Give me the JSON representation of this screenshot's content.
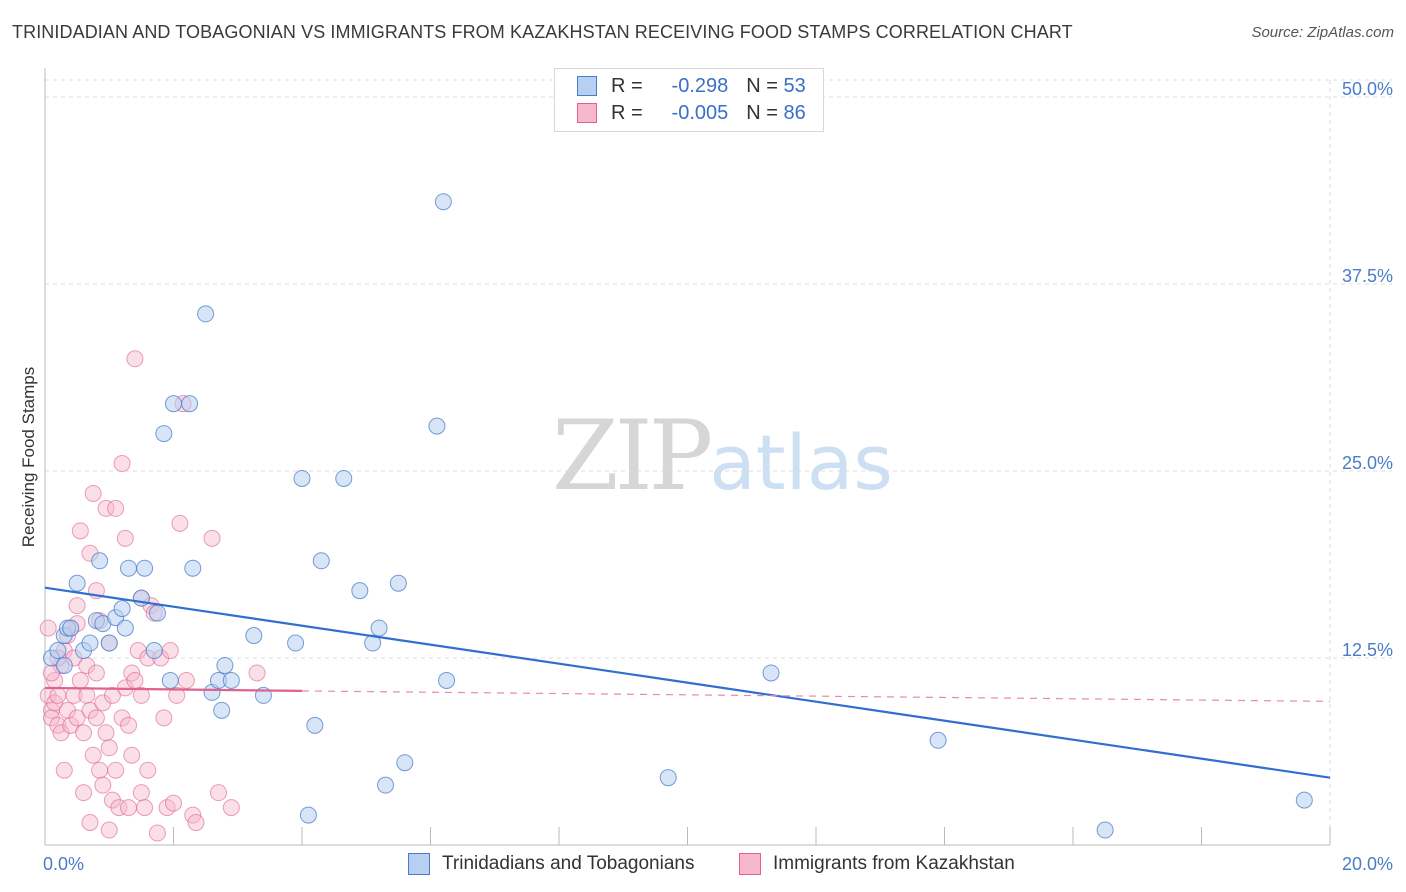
{
  "header": {
    "title": "TRINIDADIAN AND TOBAGONIAN VS IMMIGRANTS FROM KAZAKHSTAN RECEIVING FOOD STAMPS CORRELATION CHART",
    "source": "Source: ZipAtlas.com"
  },
  "watermark": {
    "zip": "ZIP",
    "atlas": "atlas"
  },
  "legend": {
    "rows": [
      {
        "r_label": "R =",
        "r_value": "-0.298",
        "n_label": "N =",
        "n_value": "53"
      },
      {
        "r_label": "R =",
        "r_value": "-0.005",
        "n_label": "N =",
        "n_value": "86"
      }
    ]
  },
  "colors": {
    "blue": "#4a7cc9",
    "blue_fill": "#b7cff0",
    "pink": "#e0608e",
    "pink_fill": "#f5b8cc"
  },
  "chart_data": {
    "type": "scatter",
    "title": "TRINIDADIAN AND TOBAGONIAN VS IMMIGRANTS FROM KAZAKHSTAN RECEIVING FOOD STAMPS CORRELATION CHART",
    "xlabel": "",
    "ylabel": "Receiving Food Stamps",
    "xlim": [
      0,
      20
    ],
    "ylim": [
      0,
      50
    ],
    "x_tick_labels": [
      "0.0%",
      "20.0%"
    ],
    "y_ticks": [
      12.5,
      25.0,
      37.5,
      50.0
    ],
    "y_tick_labels": [
      "12.5%",
      "25.0%",
      "37.5%",
      "50.0%"
    ],
    "grid": true,
    "legend_position": "top-center",
    "series": [
      {
        "name": "Trinidadians and Tobagonians",
        "r": -0.298,
        "n": 53,
        "trend": {
          "x": [
            0,
            20
          ],
          "y": [
            17.2,
            4.5
          ]
        },
        "points": [
          [
            0.1,
            12.5
          ],
          [
            0.2,
            13.0
          ],
          [
            0.3,
            12.0
          ],
          [
            0.3,
            14.0
          ],
          [
            0.35,
            14.5
          ],
          [
            0.4,
            14.5
          ],
          [
            0.5,
            17.5
          ],
          [
            0.6,
            13.0
          ],
          [
            0.7,
            13.5
          ],
          [
            0.8,
            15.0
          ],
          [
            0.85,
            19.0
          ],
          [
            0.9,
            14.8
          ],
          [
            1.0,
            13.5
          ],
          [
            1.1,
            15.2
          ],
          [
            1.2,
            15.8
          ],
          [
            1.25,
            14.5
          ],
          [
            1.3,
            18.5
          ],
          [
            1.5,
            16.5
          ],
          [
            1.55,
            18.5
          ],
          [
            1.7,
            13.0
          ],
          [
            1.75,
            15.5
          ],
          [
            1.85,
            27.5
          ],
          [
            1.95,
            11.0
          ],
          [
            2.0,
            29.5
          ],
          [
            2.25,
            29.5
          ],
          [
            2.3,
            18.5
          ],
          [
            2.5,
            35.5
          ],
          [
            2.6,
            10.2
          ],
          [
            2.7,
            11.0
          ],
          [
            2.75,
            9.0
          ],
          [
            2.8,
            12.0
          ],
          [
            2.9,
            11.0
          ],
          [
            3.25,
            14.0
          ],
          [
            3.4,
            10.0
          ],
          [
            3.9,
            13.5
          ],
          [
            4.0,
            24.5
          ],
          [
            4.1,
            2.0
          ],
          [
            4.2,
            8.0
          ],
          [
            4.3,
            19.0
          ],
          [
            4.65,
            24.5
          ],
          [
            4.9,
            17.0
          ],
          [
            5.1,
            13.5
          ],
          [
            5.2,
            14.5
          ],
          [
            5.3,
            4.0
          ],
          [
            5.5,
            17.5
          ],
          [
            5.6,
            5.5
          ],
          [
            6.1,
            28.0
          ],
          [
            6.25,
            11.0
          ],
          [
            6.2,
            43.0
          ],
          [
            9.7,
            4.5
          ],
          [
            11.3,
            11.5
          ],
          [
            13.9,
            7.0
          ],
          [
            16.5,
            1.0
          ],
          [
            19.6,
            3.0
          ]
        ]
      },
      {
        "name": "Immigrants from Kazakhstan",
        "r": -0.005,
        "n": 86,
        "trend": {
          "x": [
            0,
            4.0
          ],
          "y": [
            10.5,
            10.3
          ]
        },
        "trend_extension": {
          "x": [
            4.0,
            20
          ],
          "y": [
            10.3,
            9.6
          ]
        },
        "points": [
          [
            0.05,
            14.5
          ],
          [
            0.05,
            10.0
          ],
          [
            0.1,
            9.0
          ],
          [
            0.1,
            8.5
          ],
          [
            0.15,
            11.0
          ],
          [
            0.15,
            9.5
          ],
          [
            0.2,
            10.0
          ],
          [
            0.2,
            8.0
          ],
          [
            0.25,
            12.0
          ],
          [
            0.25,
            7.5
          ],
          [
            0.3,
            13.0
          ],
          [
            0.3,
            5.0
          ],
          [
            0.35,
            14.0
          ],
          [
            0.35,
            9.0
          ],
          [
            0.4,
            14.5
          ],
          [
            0.4,
            8.0
          ],
          [
            0.45,
            12.5
          ],
          [
            0.45,
            10.0
          ],
          [
            0.5,
            14.8
          ],
          [
            0.5,
            16.0
          ],
          [
            0.5,
            8.5
          ],
          [
            0.55,
            21.0
          ],
          [
            0.55,
            11.0
          ],
          [
            0.6,
            7.5
          ],
          [
            0.6,
            3.5
          ],
          [
            0.65,
            10.0
          ],
          [
            0.65,
            12.0
          ],
          [
            0.7,
            19.5
          ],
          [
            0.7,
            9.0
          ],
          [
            0.7,
            1.5
          ],
          [
            0.75,
            23.5
          ],
          [
            0.75,
            6.0
          ],
          [
            0.8,
            11.5
          ],
          [
            0.8,
            8.5
          ],
          [
            0.8,
            17.0
          ],
          [
            0.85,
            15.0
          ],
          [
            0.85,
            5.0
          ],
          [
            0.9,
            9.5
          ],
          [
            0.9,
            4.0
          ],
          [
            0.95,
            22.5
          ],
          [
            0.95,
            7.5
          ],
          [
            1.0,
            13.5
          ],
          [
            1.0,
            6.5
          ],
          [
            1.0,
            1.0
          ],
          [
            1.05,
            10.0
          ],
          [
            1.05,
            3.0
          ],
          [
            1.1,
            22.5
          ],
          [
            1.1,
            5.0
          ],
          [
            1.15,
            2.5
          ],
          [
            1.2,
            25.5
          ],
          [
            1.2,
            8.5
          ],
          [
            1.25,
            20.5
          ],
          [
            1.25,
            10.5
          ],
          [
            1.3,
            8.0
          ],
          [
            1.3,
            2.5
          ],
          [
            1.35,
            11.5
          ],
          [
            1.35,
            6.0
          ],
          [
            1.4,
            32.5
          ],
          [
            1.4,
            11.0
          ],
          [
            1.45,
            13.0
          ],
          [
            1.5,
            16.5
          ],
          [
            1.5,
            10.0
          ],
          [
            1.5,
            3.5
          ],
          [
            1.55,
            2.5
          ],
          [
            1.6,
            12.5
          ],
          [
            1.6,
            5.0
          ],
          [
            1.65,
            16.0
          ],
          [
            1.7,
            15.5
          ],
          [
            1.75,
            0.8
          ],
          [
            1.8,
            12.5
          ],
          [
            1.85,
            8.5
          ],
          [
            1.9,
            2.5
          ],
          [
            1.95,
            13.0
          ],
          [
            2.0,
            2.8
          ],
          [
            2.05,
            10.0
          ],
          [
            2.1,
            21.5
          ],
          [
            2.15,
            29.5
          ],
          [
            2.2,
            11.0
          ],
          [
            2.3,
            2.0
          ],
          [
            2.35,
            1.5
          ],
          [
            2.6,
            20.5
          ],
          [
            2.7,
            3.5
          ],
          [
            2.9,
            2.5
          ],
          [
            3.3,
            11.5
          ],
          [
            0.1,
            11.5
          ],
          [
            0.2,
            12.5
          ]
        ]
      }
    ]
  },
  "bottom_legend": {
    "items": [
      {
        "label": "Trinidadians and Tobagonians"
      },
      {
        "label": "Immigrants from Kazakhstan"
      }
    ]
  }
}
